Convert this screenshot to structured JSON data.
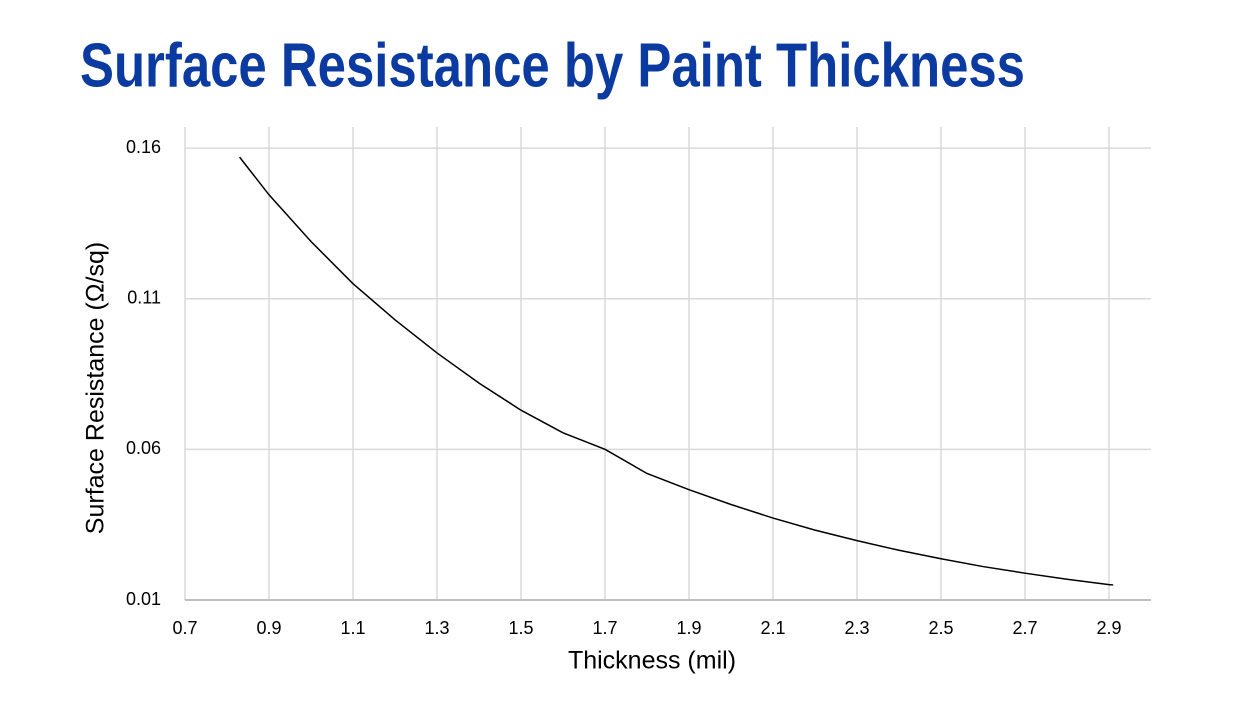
{
  "chart_data": {
    "type": "line",
    "title": "Surface Resistance by Paint Thickness",
    "x_label": "Thickness (mil)",
    "y_label": "Surface Resistance (Ω/sq)",
    "series": [
      {
        "name": "Surface Resistance",
        "color": "#000000",
        "x": [
          0.83,
          0.9,
          1.0,
          1.1,
          1.2,
          1.3,
          1.4,
          1.5,
          1.6,
          1.7,
          1.8,
          1.9,
          2.0,
          2.1,
          2.2,
          2.3,
          2.4,
          2.5,
          2.6,
          2.7,
          2.8,
          2.9,
          2.91
        ],
        "values": [
          0.157,
          0.1445,
          0.129,
          0.115,
          0.103,
          0.092,
          0.082,
          0.073,
          0.0655,
          0.06,
          0.052,
          0.0466,
          0.0417,
          0.0372,
          0.0332,
          0.0297,
          0.0265,
          0.0237,
          0.0211,
          0.0189,
          0.0169,
          0.0151,
          0.015
        ]
      }
    ],
    "xlim": [
      0.7,
      3.0
    ],
    "xticks": [
      0.7,
      0.9,
      1.1,
      1.3,
      1.5,
      1.7,
      1.9,
      2.1,
      2.3,
      2.5,
      2.7,
      2.9
    ],
    "ylim": [
      0.01,
      0.167
    ],
    "yticks": [
      0.01,
      0.06,
      0.11,
      0.16
    ],
    "grid": true
  }
}
